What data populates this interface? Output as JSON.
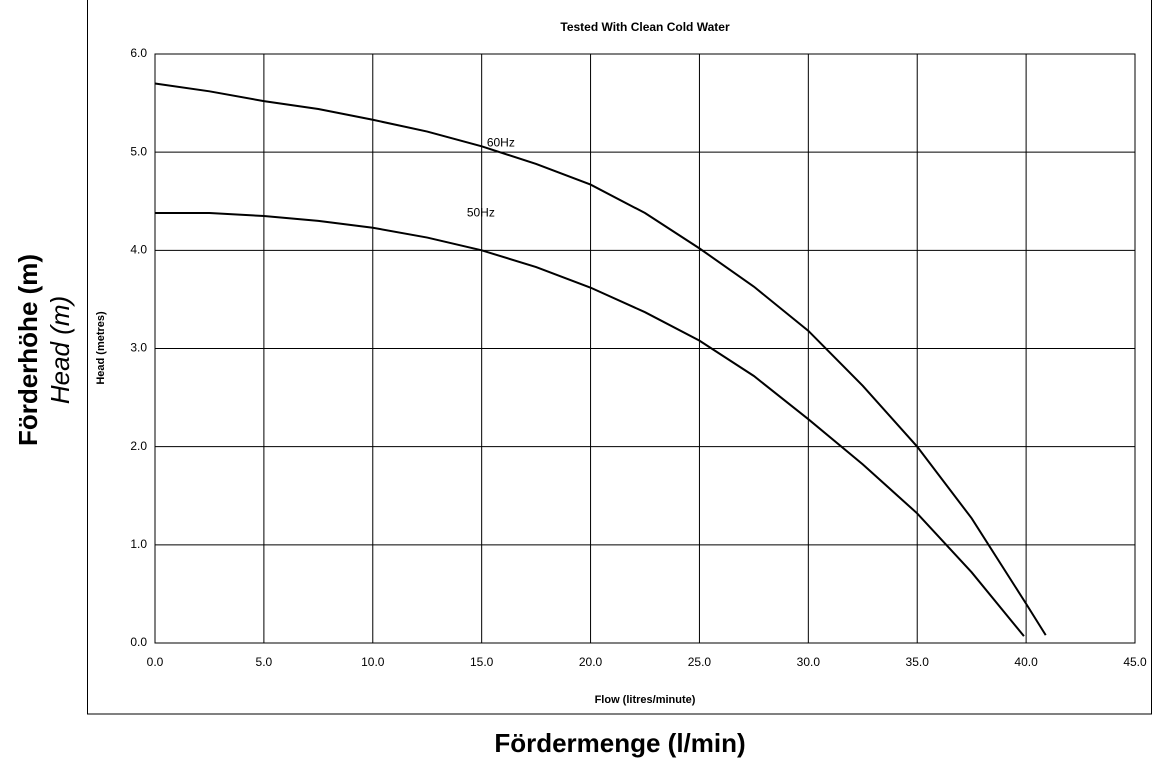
{
  "chart_data": {
    "type": "line",
    "title": "Tested With Clean Cold Water",
    "xlabel": "Flow (litres/minute)",
    "ylabel": "Head (metres)",
    "outer_xlabel": "Fördermenge (l/min)",
    "outer_ylabel": "Förderhöhe (m)",
    "outer_ylabel_en": "Head (m)",
    "series": [
      {
        "name": "60Hz",
        "color": "#000000",
        "x": [
          0,
          2.5,
          5,
          7.5,
          10,
          12.5,
          15,
          17.5,
          20,
          22.5,
          25,
          27.5,
          30,
          32.5,
          35,
          37.5,
          40,
          40.9
        ],
        "values": [
          5.7,
          5.62,
          5.52,
          5.44,
          5.33,
          5.21,
          5.06,
          4.88,
          4.67,
          4.38,
          4.02,
          3.63,
          3.18,
          2.62,
          2.0,
          1.27,
          0.4,
          0.08
        ]
      },
      {
        "name": "50Hz",
        "color": "#000000",
        "x": [
          0,
          2.5,
          5,
          7.5,
          10,
          12.5,
          15,
          17.5,
          20,
          22.5,
          25,
          27.5,
          30,
          32.5,
          35,
          37.5,
          39.9
        ],
        "values": [
          4.38,
          4.38,
          4.35,
          4.3,
          4.23,
          4.13,
          4.0,
          3.83,
          3.62,
          3.37,
          3.08,
          2.72,
          2.28,
          1.82,
          1.32,
          0.72,
          0.07
        ]
      }
    ],
    "xlim": [
      0,
      45
    ],
    "xticks": [
      {
        "value": 0,
        "label": "0.0"
      },
      {
        "value": 5,
        "label": "5.0"
      },
      {
        "value": 10,
        "label": "10.0"
      },
      {
        "value": 15,
        "label": "15.0"
      },
      {
        "value": 20,
        "label": "20.0"
      },
      {
        "value": 25,
        "label": "25.0"
      },
      {
        "value": 30,
        "label": "30.0"
      },
      {
        "value": 35,
        "label": "35.0"
      },
      {
        "value": 40,
        "label": "40.0"
      },
      {
        "value": 45,
        "label": "45.0"
      }
    ],
    "ylim": [
      0,
      6
    ],
    "yticks": [
      {
        "value": 0,
        "label": "0.0"
      },
      {
        "value": 1,
        "label": "1.0"
      },
      {
        "value": 2,
        "label": "2.0"
      },
      {
        "value": 3,
        "label": "3.0"
      },
      {
        "value": 4,
        "label": "4.0"
      },
      {
        "value": 5,
        "label": "5.0"
      },
      {
        "value": 6,
        "label": "6.0"
      }
    ],
    "grid": true
  }
}
